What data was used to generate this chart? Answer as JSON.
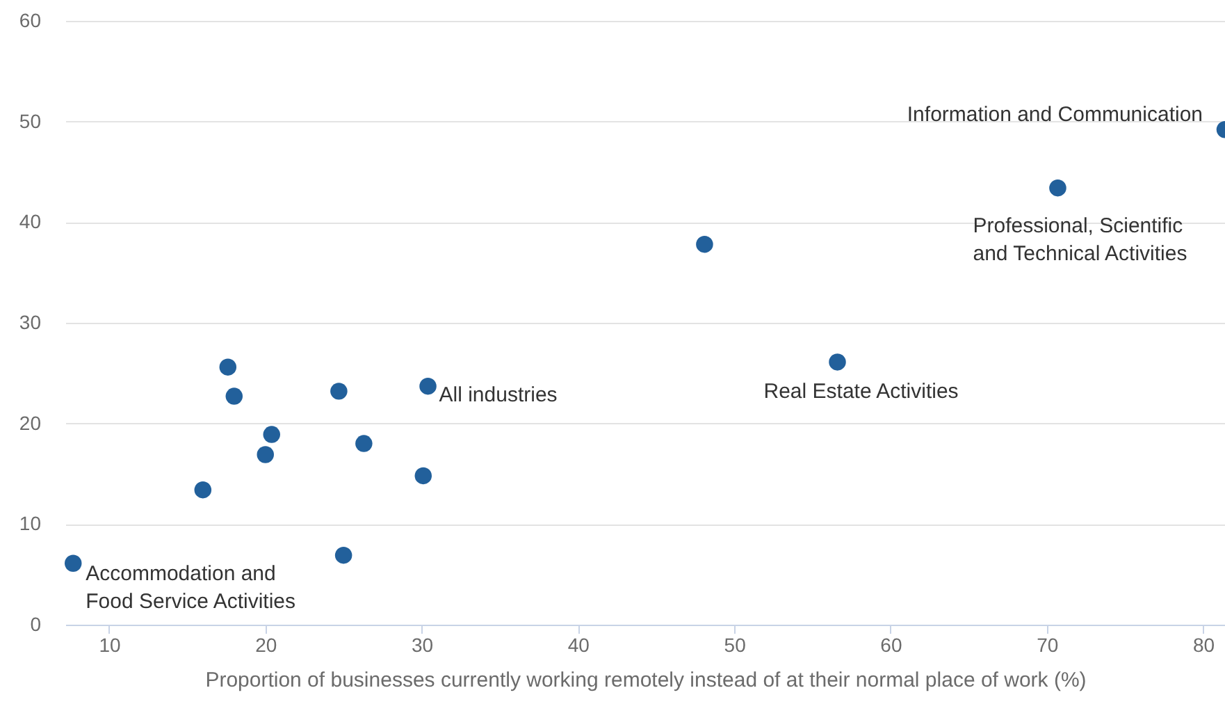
{
  "chart_data": {
    "type": "scatter",
    "xlabel": "Proportion of businesses currently working remotely instead of at their normal place of work (%)",
    "x": [
      7.7,
      17.6,
      18.0,
      16.0,
      20.0,
      20.4,
      24.7,
      25.0,
      26.3,
      30.1,
      30.4,
      48.1,
      56.6,
      70.7,
      81.4
    ],
    "series": [
      {
        "color": "#22609b",
        "values": [
          6.1,
          25.6,
          22.7,
          13.4,
          16.9,
          18.9,
          23.2,
          6.9,
          18.0,
          14.8,
          23.7,
          37.8,
          26.1,
          43.4,
          49.2
        ]
      }
    ],
    "xlim": [
      7.2,
      81.4
    ],
    "xticks": [
      10,
      20,
      30,
      40,
      50,
      60,
      70,
      80
    ],
    "ylim": [
      0,
      60
    ],
    "yticks": [
      0,
      10,
      20,
      30,
      40,
      50,
      60
    ],
    "grid": "y",
    "marker": "circle",
    "annotations": [
      {
        "text": "Information and Communication",
        "x": 81.4,
        "y": 49.2
      },
      {
        "text": "Professional, Scientific\nand Technical Activities",
        "x": 70.7,
        "y": 43.4
      },
      {
        "text": "Real Estate Activities",
        "x": 56.6,
        "y": 26.1
      },
      {
        "text": "All industries",
        "x": 30.4,
        "y": 23.7
      },
      {
        "text": "Accommodation and\nFood Service Activities",
        "x": 7.7,
        "y": 6.1
      }
    ]
  }
}
